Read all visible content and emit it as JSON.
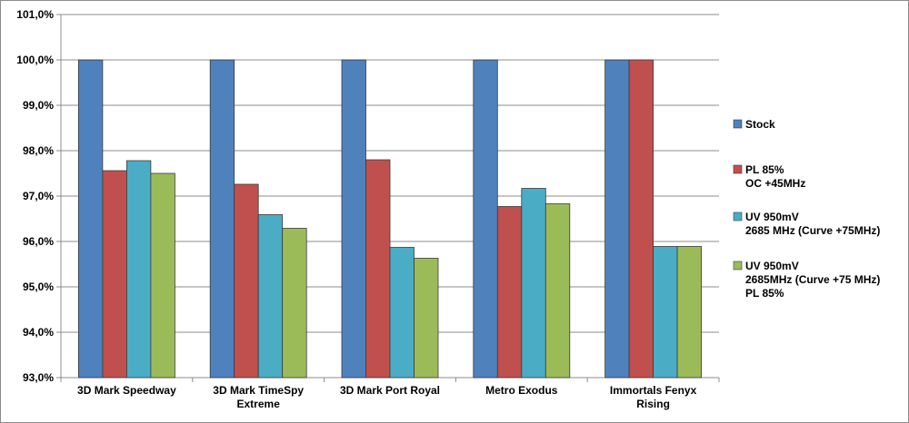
{
  "chart_data": {
    "type": "bar",
    "title": "",
    "xlabel": "",
    "ylabel": "",
    "ylim": [
      93.0,
      101.0
    ],
    "yticks": [
      "93,0%",
      "94,0%",
      "95,0%",
      "96,0%",
      "97,0%",
      "98,0%",
      "99,0%",
      "100,0%",
      "101,0%"
    ],
    "ytick_values": [
      93,
      94,
      95,
      96,
      97,
      98,
      99,
      100,
      101
    ],
    "grid": true,
    "legend_position": "right",
    "categories": [
      [
        "3D Mark  Speedway"
      ],
      [
        "3D Mark TimeSpy",
        "Extreme"
      ],
      [
        "3D Mark Port Royal"
      ],
      [
        "Metro Exodus"
      ],
      [
        "Immortals Fenyx",
        "Rising"
      ]
    ],
    "series": [
      {
        "name": [
          "Stock"
        ],
        "color": "#4f81bd",
        "values": [
          100.0,
          100.0,
          100.0,
          100.0,
          100.0
        ]
      },
      {
        "name": [
          "PL 85%",
          "OC +45MHz"
        ],
        "color": "#c0504d",
        "values": [
          97.56,
          97.26,
          97.8,
          96.77,
          100.0
        ]
      },
      {
        "name": [
          "UV 950mV",
          "2685 MHz (Curve  +75MHz)"
        ],
        "color": "#4bacc6",
        "values": [
          97.78,
          96.59,
          95.87,
          97.17,
          95.89
        ]
      },
      {
        "name": [
          "UV 950mV",
          "2685MHz (Curve +75 MHz)",
          "PL 85%"
        ],
        "color": "#9bbb59",
        "values": [
          97.5,
          96.29,
          95.63,
          96.83,
          95.89
        ]
      }
    ]
  }
}
